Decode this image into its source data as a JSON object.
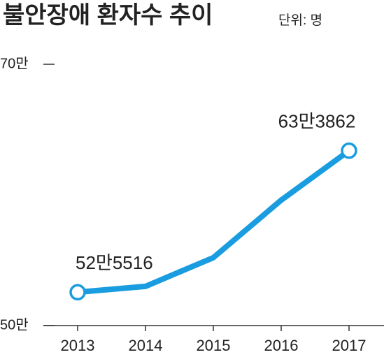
{
  "chart_data": {
    "type": "line",
    "title": "불안장애 환자수 추이",
    "subtitle": "단위: 명",
    "categories": [
      "2013",
      "2014",
      "2015",
      "2016",
      "2017"
    ],
    "series": [
      {
        "color": "#1a9de0",
        "values": [
          525516,
          530000,
          552000,
          596000,
          633862
        ],
        "value_labels": [
          "52만5516",
          null,
          null,
          null,
          "63만3862"
        ]
      }
    ],
    "ylim": [
      500000,
      700000
    ],
    "yticks": [
      {
        "value": 500000,
        "label": "50만"
      },
      {
        "value": 700000,
        "label": "70만"
      }
    ]
  }
}
